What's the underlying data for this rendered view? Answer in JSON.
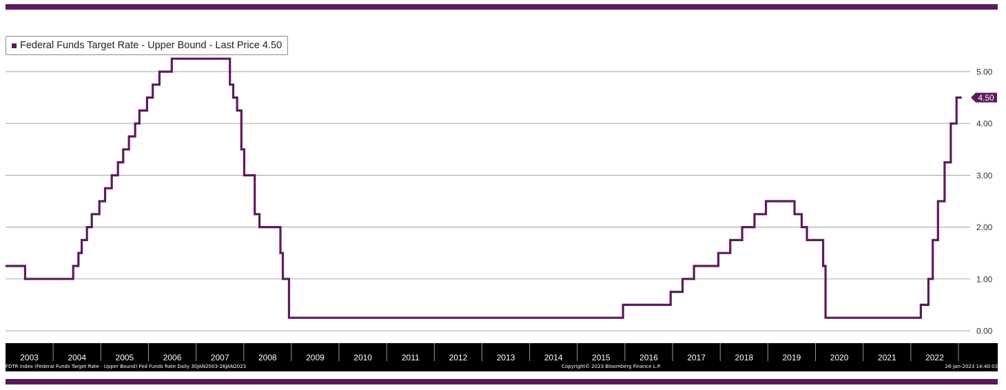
{
  "colors": {
    "brand": "#5c1a5e",
    "series": "#5c1a5e",
    "axis_bar": "#000000",
    "grid": "#b0b0b0"
  },
  "legend": {
    "label": "Federal Funds Target Rate - Upper Bound - Last Price 4.50"
  },
  "last_price_tag": "4.50",
  "footer": {
    "left": "FDTR Index (Federal Funds Target Rate - Upper Bound) Fed Funds Rate  Daily 30JAN2003-26JAN2023",
    "center": "Copyright© 2023 Bloomberg Finance L.P.",
    "right": "26-Jan-2023 14:40:03"
  },
  "chart_data": {
    "type": "line",
    "step": true,
    "title": "",
    "xlabel": "",
    "ylabel": "",
    "xlim": [
      2003.0,
      2023.1
    ],
    "ylim": [
      -0.15,
      5.5
    ],
    "yticks": [
      0.0,
      1.0,
      2.0,
      3.0,
      4.0,
      5.0
    ],
    "ytick_labels": [
      "0.00",
      "1.00",
      "2.00",
      "3.00",
      "4.00",
      "5.00"
    ],
    "x_tick_labels": [
      "2003",
      "2004",
      "2005",
      "2006",
      "2007",
      "2008",
      "2009",
      "2010",
      "2011",
      "2012",
      "2013",
      "2014",
      "2015",
      "2016",
      "2017",
      "2018",
      "2019",
      "2020",
      "2021",
      "2022"
    ],
    "grid": true,
    "legend_position": "top-left",
    "series": [
      {
        "name": "Federal Funds Target Rate - Upper Bound",
        "x": [
          2003.0,
          2003.41,
          2004.42,
          2004.53,
          2004.6,
          2004.71,
          2004.81,
          2004.87,
          2004.97,
          2005.09,
          2005.23,
          2005.36,
          2005.47,
          2005.59,
          2005.72,
          2005.81,
          2005.97,
          2006.09,
          2006.23,
          2006.36,
          2006.49,
          2007.71,
          2007.78,
          2007.86,
          2007.95,
          2008.01,
          2008.05,
          2008.23,
          2008.33,
          2008.77,
          2008.82,
          2008.95,
          2015.96,
          2016.96,
          2017.21,
          2017.45,
          2017.96,
          2018.21,
          2018.46,
          2018.72,
          2018.96,
          2019.56,
          2019.71,
          2019.82,
          2020.16,
          2020.21,
          2022.21,
          2022.37,
          2022.46,
          2022.57,
          2022.71,
          2022.84,
          2022.96,
          2023.07
        ],
        "values": [
          1.25,
          1.0,
          1.25,
          1.5,
          1.75,
          2.0,
          2.25,
          2.25,
          2.5,
          2.75,
          3.0,
          3.25,
          3.5,
          3.75,
          4.0,
          4.25,
          4.5,
          4.75,
          5.0,
          5.0,
          5.25,
          4.75,
          4.5,
          4.25,
          3.5,
          3.0,
          3.0,
          2.25,
          2.0,
          1.5,
          1.0,
          0.25,
          0.5,
          0.75,
          1.0,
          1.25,
          1.5,
          1.75,
          2.0,
          2.25,
          2.5,
          2.25,
          2.0,
          1.75,
          1.25,
          0.25,
          0.5,
          1.0,
          1.75,
          2.5,
          3.25,
          4.0,
          4.5,
          4.5
        ]
      }
    ]
  }
}
